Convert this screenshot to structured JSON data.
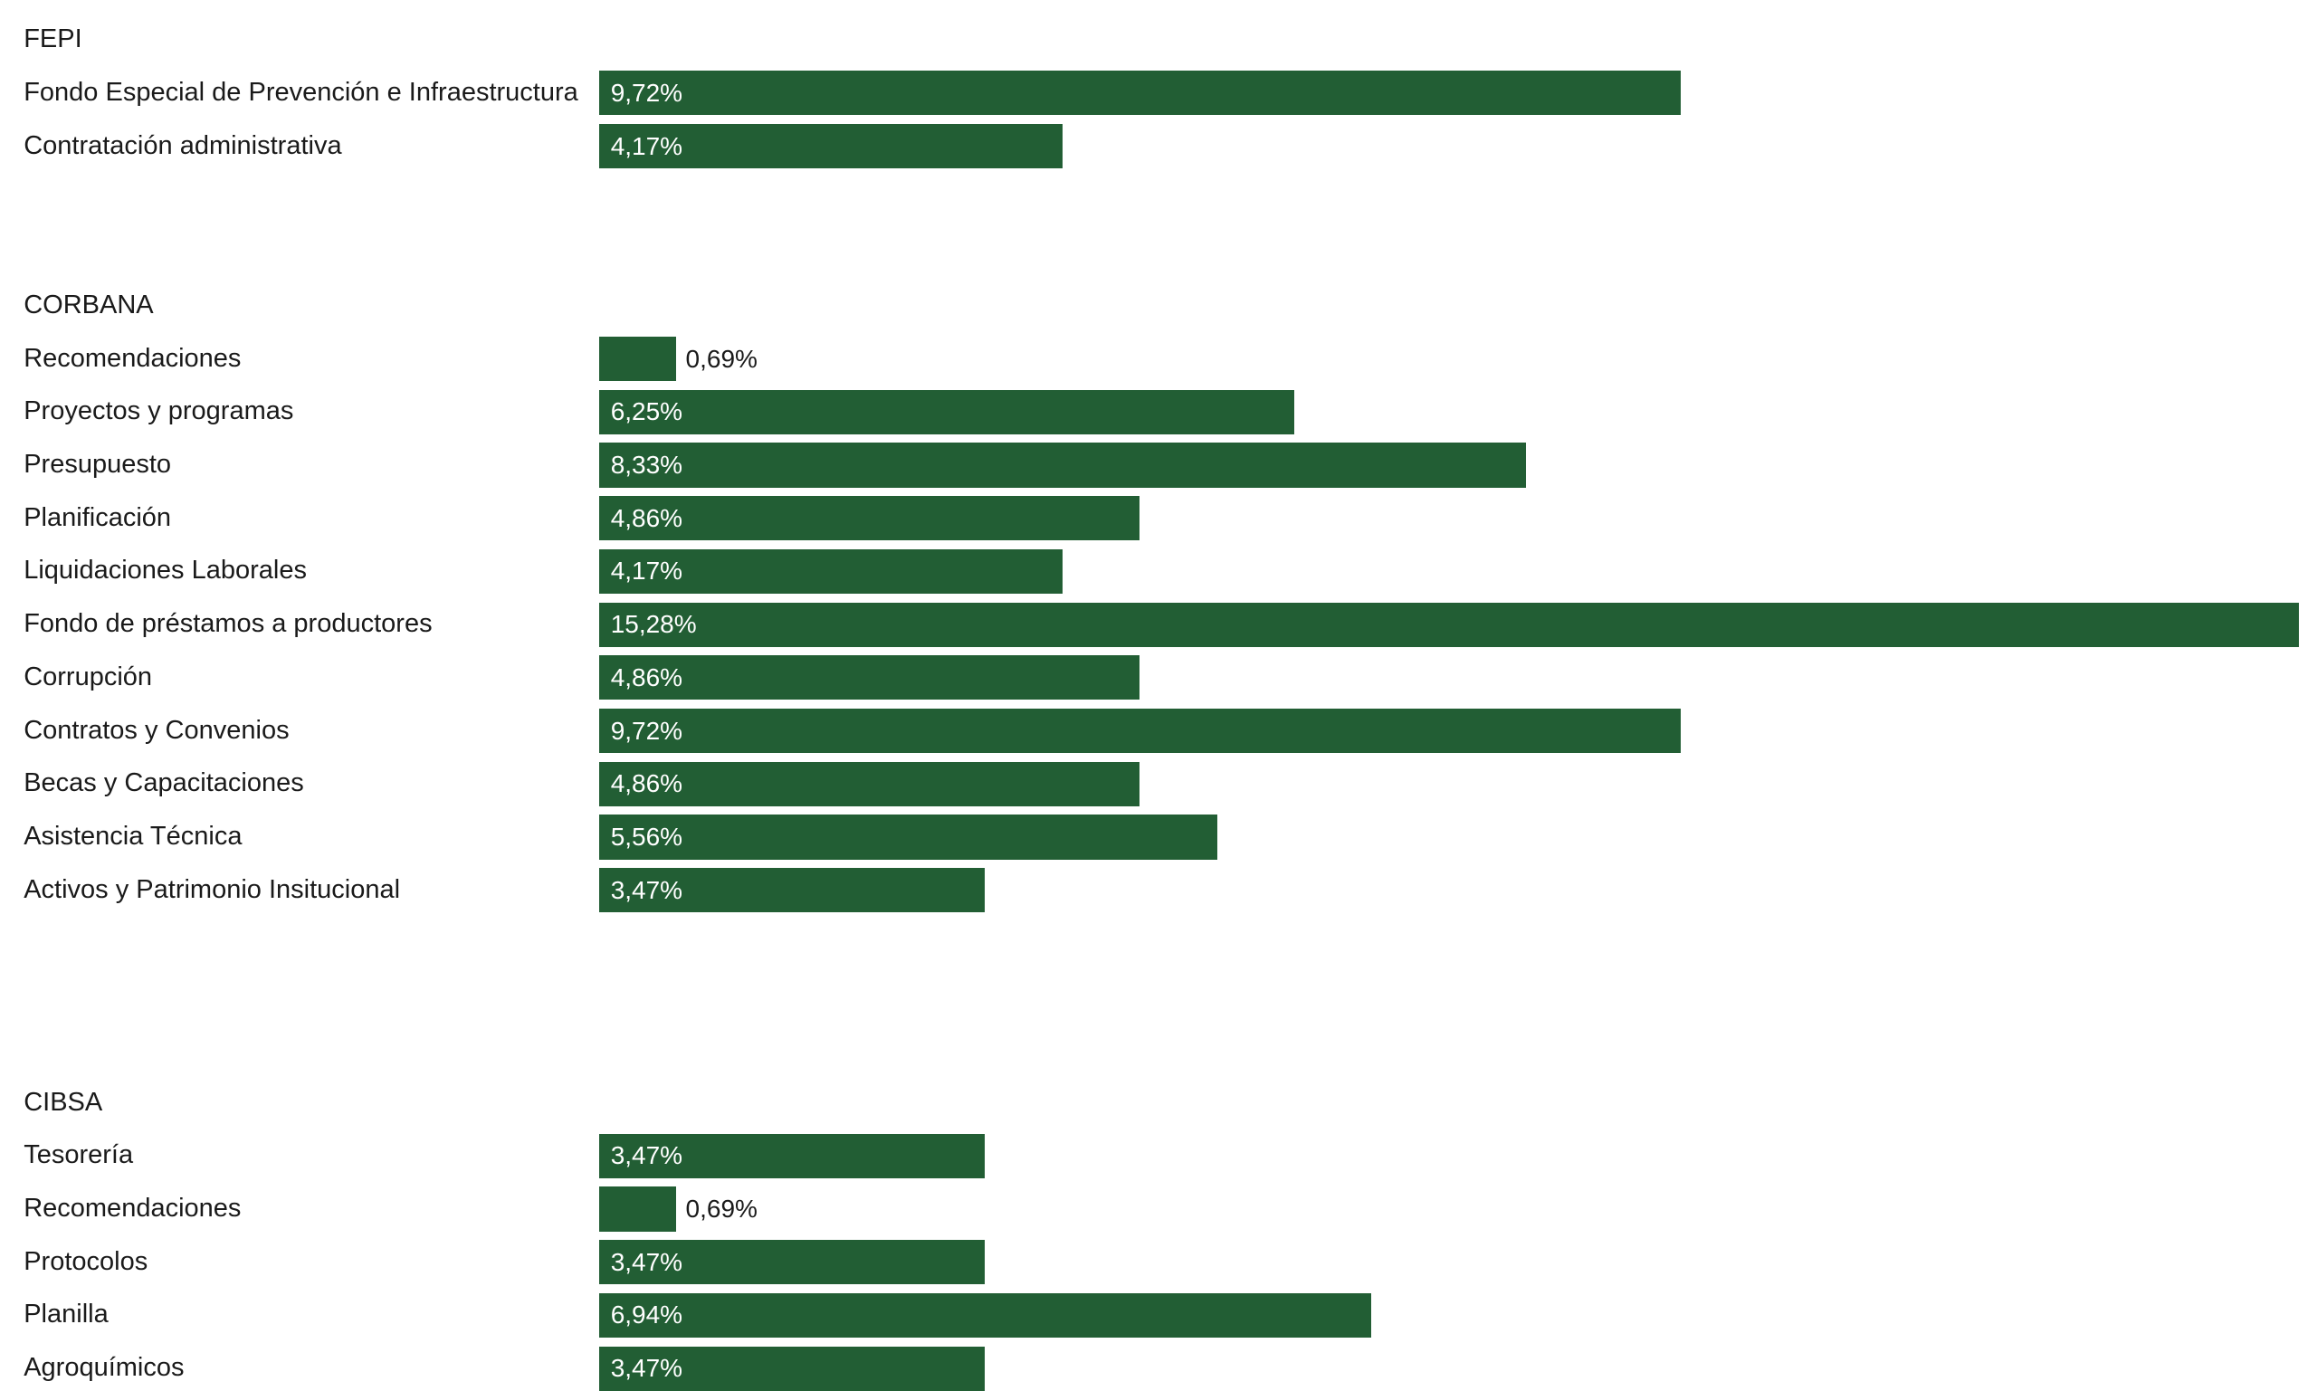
{
  "chart_data": {
    "type": "bar",
    "orientation": "horizontal",
    "value_format": "percent-comma",
    "color": "#225e34",
    "groups": [
      {
        "name": "FEPI",
        "items": [
          {
            "label": "Fondo Especial de Prevención e Infraestructura",
            "value": 9.72,
            "text": "9,72%"
          },
          {
            "label": "Contratación administrativa",
            "value": 4.17,
            "text": "4,17%"
          }
        ]
      },
      {
        "name": "CORBANA",
        "items": [
          {
            "label": "Recomendaciones",
            "value": 0.69,
            "text": "0,69%"
          },
          {
            "label": "Proyectos y programas",
            "value": 6.25,
            "text": "6,25%"
          },
          {
            "label": "Presupuesto",
            "value": 8.33,
            "text": "8,33%"
          },
          {
            "label": "Planificación",
            "value": 4.86,
            "text": "4,86%"
          },
          {
            "label": "Liquidaciones Laborales",
            "value": 4.17,
            "text": "4,17%"
          },
          {
            "label": "Fondo de préstamos a productores",
            "value": 15.28,
            "text": "15,28%"
          },
          {
            "label": "Corrupción",
            "value": 4.86,
            "text": "4,86%"
          },
          {
            "label": "Contratos y Convenios",
            "value": 9.72,
            "text": "9,72%"
          },
          {
            "label": "Becas y Capacitaciones",
            "value": 4.86,
            "text": "4,86%"
          },
          {
            "label": "Asistencia Técnica",
            "value": 5.56,
            "text": "5,56%"
          },
          {
            "label": "Activos y Patrimonio Insitucional",
            "value": 3.47,
            "text": "3,47%"
          }
        ]
      },
      {
        "name": "CIBSA",
        "items": [
          {
            "label": "Tesorería",
            "value": 3.47,
            "text": "3,47%"
          },
          {
            "label": "Recomendaciones",
            "value": 0.69,
            "text": "0,69%"
          },
          {
            "label": "Protocolos",
            "value": 3.47,
            "text": "3,47%"
          },
          {
            "label": "Planilla",
            "value": 6.94,
            "text": "6,94%"
          },
          {
            "label": "Agroquímicos",
            "value": 3.47,
            "text": "3,47%"
          }
        ]
      }
    ]
  }
}
